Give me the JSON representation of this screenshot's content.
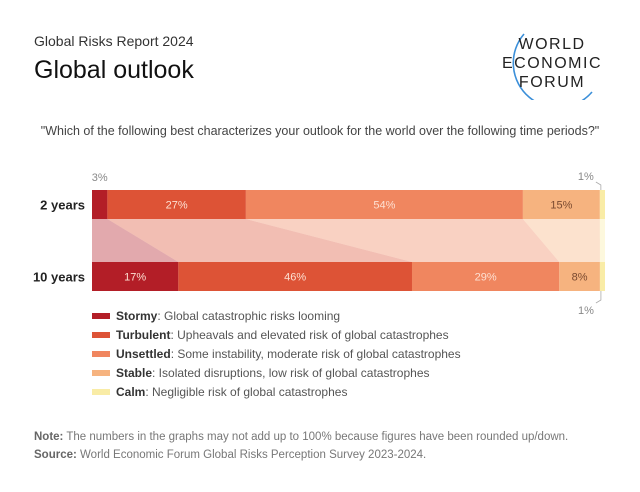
{
  "header": {
    "report": "Global Risks Report 2024",
    "title": "Global outlook"
  },
  "logo": {
    "lines": [
      "WORLD",
      "ECONOMIC",
      "FORUM"
    ]
  },
  "question": "\"Which of the following best characterizes your outlook for the world over the following time periods?\"",
  "chart_data": {
    "type": "bar",
    "stacked": "horizontal-100%",
    "categories": [
      "2 years",
      "10 years"
    ],
    "series": [
      {
        "name": "Stormy",
        "values": [
          3,
          17
        ],
        "color": "#b31e27"
      },
      {
        "name": "Turbulent",
        "values": [
          27,
          46
        ],
        "color": "#dd5336"
      },
      {
        "name": "Unsettled",
        "values": [
          54,
          29
        ],
        "color": "#f0865f"
      },
      {
        "name": "Stable",
        "values": [
          15,
          8
        ],
        "color": "#f6b37f"
      },
      {
        "name": "Calm",
        "values": [
          1,
          1
        ],
        "color": "#f9eca6"
      }
    ],
    "value_suffix": "%"
  },
  "legend": [
    {
      "name": "Stormy",
      "desc": ": Global catastrophic risks looming"
    },
    {
      "name": "Turbulent",
      "desc": ": Upheavals and elevated risk of global catastrophes"
    },
    {
      "name": "Unsettled",
      "desc": ": Some instability, moderate risk of global catastrophes"
    },
    {
      "name": "Stable",
      "desc": ": Isolated disruptions, low risk of global catastrophes"
    },
    {
      "name": "Calm",
      "desc": ": Negligible risk of global catastrophes"
    }
  ],
  "footer": {
    "note_label": "Note:",
    "note": " The numbers in the graphs may not add up to 100% because figures have been rounded up/down.",
    "source_label": "Source:",
    "source": " World Economic Forum Global Risks Perception Survey 2023-2024."
  }
}
